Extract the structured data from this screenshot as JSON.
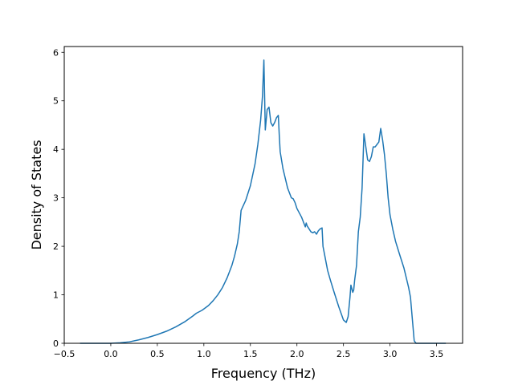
{
  "chart_data": {
    "type": "line",
    "title": "",
    "xlabel": "Frequency (THz)",
    "ylabel": "Density of States",
    "xlim": [
      -0.5,
      3.78
    ],
    "ylim": [
      0,
      6.12
    ],
    "xticks": [
      -0.5,
      0.0,
      0.5,
      1.0,
      1.5,
      2.0,
      2.5,
      3.0,
      3.5
    ],
    "xtick_labels": [
      "−0.5",
      "0.0",
      "0.5",
      "1.0",
      "1.5",
      "2.0",
      "2.5",
      "3.0",
      "3.5"
    ],
    "yticks": [
      0,
      1,
      2,
      3,
      4,
      5,
      6
    ],
    "ytick_labels": [
      "0",
      "1",
      "2",
      "3",
      "4",
      "5",
      "6"
    ],
    "grid": false,
    "legend": "none",
    "series": [
      {
        "color": "#1f77b4",
        "x": [
          -0.33,
          -0.2,
          0.0,
          0.1,
          0.2,
          0.3,
          0.4,
          0.5,
          0.6,
          0.7,
          0.8,
          0.88,
          0.92,
          0.98,
          1.05,
          1.1,
          1.15,
          1.2,
          1.25,
          1.3,
          1.33,
          1.36,
          1.38,
          1.4,
          1.45,
          1.5,
          1.55,
          1.58,
          1.61,
          1.63,
          1.645,
          1.66,
          1.68,
          1.7,
          1.72,
          1.74,
          1.76,
          1.78,
          1.8,
          1.81,
          1.82,
          1.85,
          1.9,
          1.94,
          1.96,
          1.98,
          2.0,
          2.05,
          2.08,
          2.09,
          2.1,
          2.11,
          2.13,
          2.15,
          2.17,
          2.19,
          2.21,
          2.23,
          2.25,
          2.27,
          2.28,
          2.3,
          2.33,
          2.36,
          2.4,
          2.45,
          2.5,
          2.53,
          2.55,
          2.57,
          2.58,
          2.6,
          2.61,
          2.62,
          2.64,
          2.66,
          2.68,
          2.7,
          2.72,
          2.74,
          2.76,
          2.78,
          2.8,
          2.82,
          2.84,
          2.86,
          2.88,
          2.9,
          2.92,
          2.94,
          2.96,
          2.98,
          3.0,
          3.03,
          3.06,
          3.1,
          3.15,
          3.2,
          3.22,
          3.24,
          3.26,
          3.28,
          3.3,
          3.4,
          3.5,
          3.6
        ],
        "y": [
          0,
          0,
          0,
          0.01,
          0.03,
          0.07,
          0.12,
          0.18,
          0.25,
          0.34,
          0.45,
          0.56,
          0.62,
          0.68,
          0.78,
          0.88,
          1.0,
          1.15,
          1.35,
          1.6,
          1.8,
          2.05,
          2.3,
          2.74,
          2.95,
          3.25,
          3.7,
          4.1,
          4.6,
          5.1,
          5.84,
          4.4,
          4.82,
          4.87,
          4.55,
          4.48,
          4.55,
          4.65,
          4.7,
          4.3,
          3.95,
          3.6,
          3.2,
          3.0,
          2.98,
          2.9,
          2.78,
          2.6,
          2.45,
          2.4,
          2.48,
          2.42,
          2.36,
          2.3,
          2.28,
          2.3,
          2.25,
          2.32,
          2.36,
          2.38,
          2.0,
          1.8,
          1.5,
          1.3,
          1.05,
          0.75,
          0.48,
          0.43,
          0.55,
          0.95,
          1.2,
          1.05,
          1.1,
          1.3,
          1.6,
          2.3,
          2.6,
          3.2,
          4.32,
          4.05,
          3.78,
          3.75,
          3.85,
          4.05,
          4.05,
          4.1,
          4.15,
          4.43,
          4.2,
          3.9,
          3.5,
          3.0,
          2.65,
          2.35,
          2.1,
          1.85,
          1.55,
          1.15,
          0.95,
          0.5,
          0.05,
          0,
          0,
          0,
          0,
          0
        ]
      }
    ]
  }
}
